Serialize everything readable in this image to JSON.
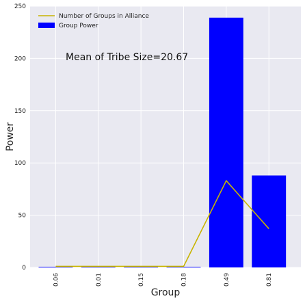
{
  "chart_data": {
    "type": "bar",
    "categories": [
      "0.06",
      "0.01",
      "0.15",
      "0.18",
      "0.49",
      "0.81"
    ],
    "series": [
      {
        "name": "Group Power",
        "kind": "bar",
        "color": "#0000ff",
        "values": [
          0.5,
          0,
          0,
          0.5,
          239,
          88
        ]
      },
      {
        "name": "Number of Groups in Alliance",
        "kind": "line",
        "color": "#c8b400",
        "values": [
          1,
          1,
          1,
          1,
          83,
          37
        ]
      }
    ],
    "xlabel": "Group",
    "ylabel": "Power",
    "ylim": [
      0,
      250
    ],
    "yticks": [
      "0",
      "50",
      "100",
      "150",
      "200",
      "250"
    ],
    "annotation": "Mean of Tribe Size=20.67",
    "grid": true,
    "legend_position": "top-left"
  }
}
